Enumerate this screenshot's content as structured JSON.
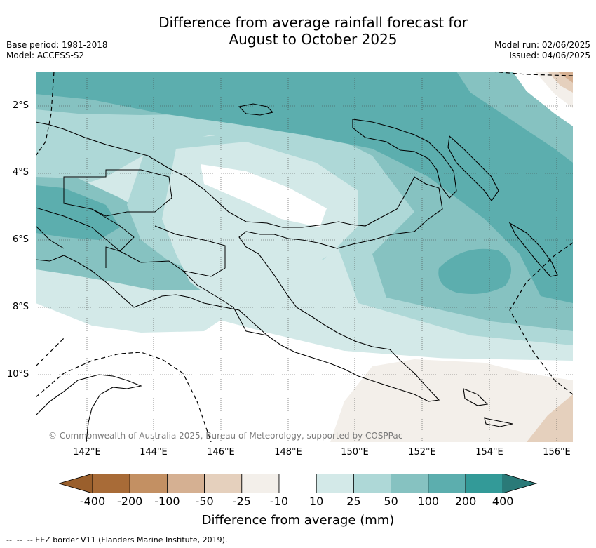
{
  "title_line1": "Difference from average rainfall forecast for",
  "title_line2": "August to October 2025",
  "meta_left": {
    "base_period": "Base period: 1981-2018",
    "model": "Model: ACCESS-S2"
  },
  "meta_right": {
    "model_run": "Model run: 02/06/2025",
    "issued": "Issued: 04/06/2025"
  },
  "map": {
    "lat_labels": [
      "2°S",
      "4°S",
      "6°S",
      "8°S",
      "10°S"
    ],
    "lon_labels": [
      "142°E",
      "144°E",
      "146°E",
      "148°E",
      "150°E",
      "152°E",
      "154°E",
      "156°E"
    ],
    "copyright": "© Commonwealth of Australia 2025, Bureau of Meteorology, supported by COSPPac"
  },
  "colorbar": {
    "tick_labels": [
      "-400",
      "-200",
      "-100",
      "-50",
      "-25",
      "-10",
      "10",
      "25",
      "50",
      "100",
      "200",
      "400"
    ],
    "colors": [
      "#a86b37",
      "#c39063",
      "#d5b092",
      "#e5d0bd",
      "#f3efea",
      "#ffffff",
      "#d3e9e8",
      "#aed8d7",
      "#86c2c1",
      "#5caeae",
      "#339a98"
    ],
    "extend_low_color": "#9a5f2c",
    "extend_high_color": "#2a7a78",
    "label": "Difference from average (mm)"
  },
  "footer": {
    "eez_note": "-- EEZ border V11 (Flanders Marine Institute, 2019)."
  }
}
